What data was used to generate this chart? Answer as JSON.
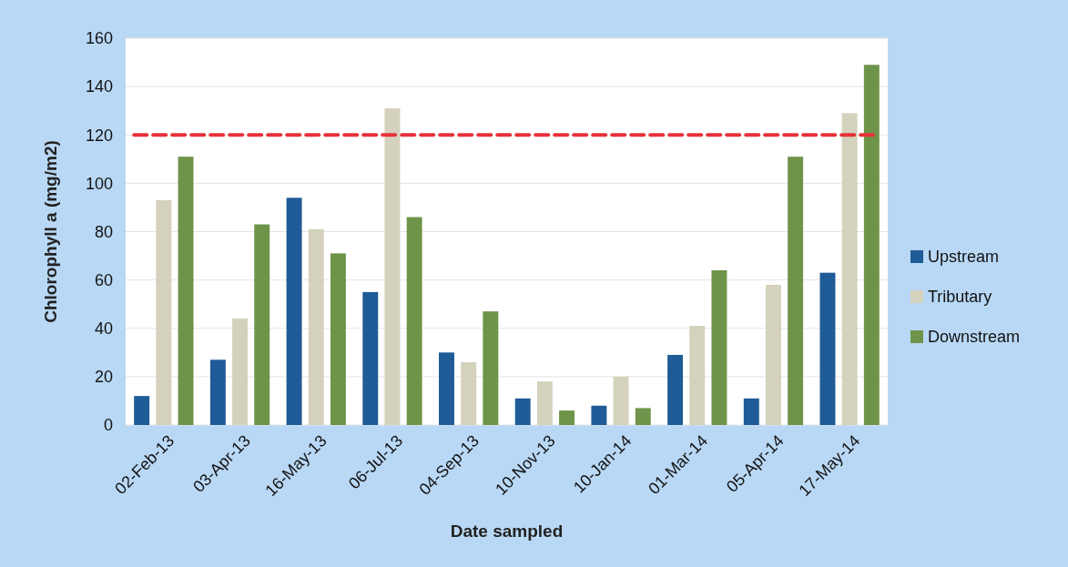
{
  "chart_data": {
    "type": "bar",
    "xlabel": "Date sampled",
    "ylabel": "Chlorophyll a (mg/m2)",
    "categories": [
      "02-Feb-13",
      "03-Apr-13",
      "16-May-13",
      "06-Jul-13",
      "04-Sep-13",
      "10-Nov-13",
      "10-Jan-14",
      "01-Mar-14",
      "05-Apr-14",
      "17-May-14"
    ],
    "series": [
      {
        "name": "Upstream",
        "color": "#1f5b96",
        "values": [
          12,
          27,
          94,
          55,
          30,
          11,
          8,
          29,
          11,
          63
        ]
      },
      {
        "name": "Tributary",
        "color": "#d4d2bc",
        "values": [
          93,
          44,
          81,
          131,
          26,
          18,
          20,
          41,
          58,
          129
        ]
      },
      {
        "name": "Downstream",
        "color": "#6e9449",
        "values": [
          111,
          83,
          71,
          86,
          47,
          6,
          7,
          64,
          111,
          149
        ]
      }
    ],
    "ylim": [
      0,
      160
    ],
    "yticks": [
      0,
      20,
      40,
      60,
      80,
      100,
      120,
      140,
      160
    ],
    "grid": "y",
    "legend": "right",
    "ref_lines": [
      {
        "axis": "y",
        "value": 120,
        "color": "#e8303a",
        "line_style": "dashed"
      }
    ]
  }
}
